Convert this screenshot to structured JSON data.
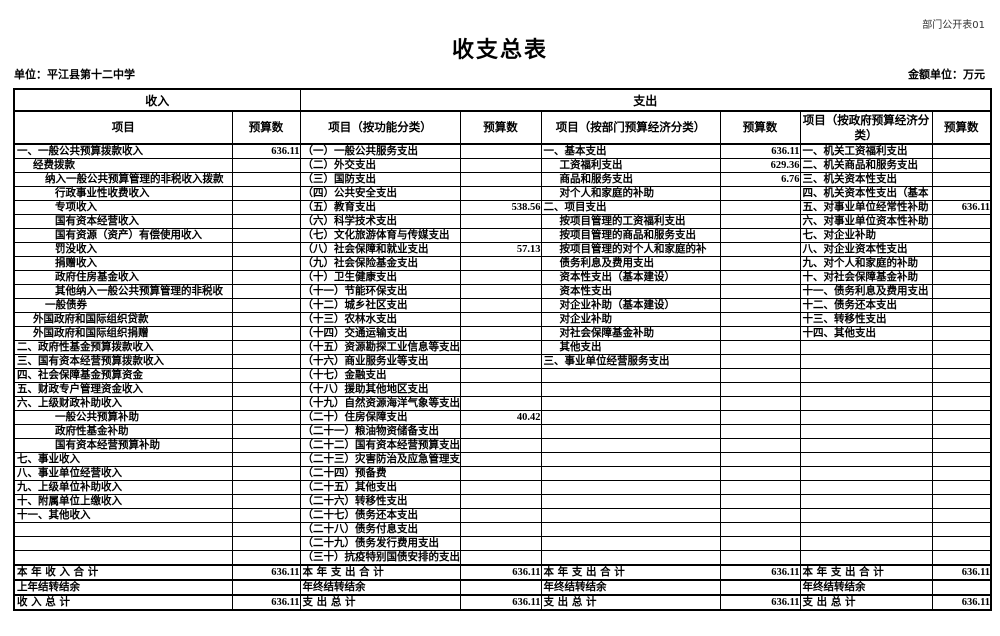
{
  "page": {
    "doc_label": "部门公开表01",
    "title": "收支总表",
    "org_label": "单位：平江县第十二中学",
    "amount_unit": "金额单位：万元"
  },
  "table": {
    "group_headers": [
      {
        "label": "收入",
        "span": 2
      },
      {
        "label": "支出",
        "span": 6
      }
    ],
    "column_headers": [
      "项目",
      "预算数",
      "项目（按功能分类）",
      "预算数",
      "项目（按部门预算经济分类）",
      "预算数",
      "项目（按政府预算经济分类）",
      "预算数"
    ],
    "rows": [
      {
        "cells": [
          [
            "一、一般公共预算拨款收入",
            0
          ],
          "636.11",
          [
            "（一）一般公共服务支出",
            0
          ],
          "",
          [
            "一、基本支出",
            0
          ],
          "636.11",
          [
            "一、机关工资福利支出",
            0
          ],
          ""
        ]
      },
      {
        "cells": [
          [
            "经费拨款",
            1
          ],
          "",
          [
            "（二）外交支出",
            0
          ],
          "",
          [
            "工资福利支出",
            1
          ],
          "629.36",
          [
            "二、机关商品和服务支出",
            0
          ],
          ""
        ]
      },
      {
        "cells": [
          [
            "纳入一般公共预算管理的非税收入拨款",
            2
          ],
          "",
          [
            "（三）国防支出",
            0
          ],
          "",
          [
            "商品和服务支出",
            1
          ],
          "6.76",
          [
            "三、机关资本性支出",
            0
          ],
          ""
        ]
      },
      {
        "cells": [
          [
            "行政事业性收费收入",
            3
          ],
          "",
          [
            "（四）公共安全支出",
            0
          ],
          "",
          [
            "对个人和家庭的补助",
            1
          ],
          "",
          [
            "四、机关资本性支出（基本",
            0
          ],
          ""
        ]
      },
      {
        "cells": [
          [
            "专项收入",
            3
          ],
          "",
          [
            "（五）教育支出",
            0
          ],
          "538.56",
          [
            "二、项目支出",
            0
          ],
          "",
          [
            "五、对事业单位经常性补助",
            0
          ],
          "636.11"
        ]
      },
      {
        "cells": [
          [
            "国有资本经营收入",
            3
          ],
          "",
          [
            "（六）科学技术支出",
            0
          ],
          "",
          [
            "按项目管理的工资福利支出",
            1
          ],
          "",
          [
            "六、对事业单位资本性补助",
            0
          ],
          ""
        ]
      },
      {
        "cells": [
          [
            "国有资源（资产）有偿使用收入",
            3
          ],
          "",
          [
            "（七）文化旅游体育与传媒支出",
            0
          ],
          "",
          [
            "按项目管理的商品和服务支出",
            1
          ],
          "",
          [
            "七、对企业补助",
            0
          ],
          ""
        ]
      },
      {
        "cells": [
          [
            "罚没收入",
            3
          ],
          "",
          [
            "（八）社会保障和就业支出",
            0
          ],
          "57.13",
          [
            "按项目管理的对个人和家庭的补",
            1
          ],
          "",
          [
            "八、对企业资本性支出",
            0
          ],
          ""
        ]
      },
      {
        "cells": [
          [
            "捐赠收入",
            3
          ],
          "",
          [
            "（九）社会保险基金支出",
            0
          ],
          "",
          [
            "债务利息及费用支出",
            1
          ],
          "",
          [
            "九、对个人和家庭的补助",
            0
          ],
          ""
        ]
      },
      {
        "cells": [
          [
            "政府住房基金收入",
            3
          ],
          "",
          [
            "（十）卫生健康支出",
            0
          ],
          "",
          [
            "资本性支出（基本建设）",
            1
          ],
          "",
          [
            "十、对社会保障基金补助",
            0
          ],
          ""
        ]
      },
      {
        "cells": [
          [
            "其他纳入一般公共预算管理的非税收",
            3
          ],
          "",
          [
            "（十一）节能环保支出",
            0
          ],
          "",
          [
            "资本性支出",
            1
          ],
          "",
          [
            "十一、债务利息及费用支出",
            0
          ],
          ""
        ]
      },
      {
        "cells": [
          [
            "一般债券",
            2
          ],
          "",
          [
            "（十二）城乡社区支出",
            0
          ],
          "",
          [
            "对企业补助（基本建设）",
            1
          ],
          "",
          [
            "十二、债务还本支出",
            0
          ],
          ""
        ]
      },
      {
        "cells": [
          [
            "外国政府和国际组织贷款",
            1
          ],
          "",
          [
            "（十三）农林水支出",
            0
          ],
          "",
          [
            "对企业补助",
            1
          ],
          "",
          [
            "十三、转移性支出",
            0
          ],
          ""
        ]
      },
      {
        "cells": [
          [
            "外国政府和国际组织捐赠",
            1
          ],
          "",
          [
            "（十四）交通运输支出",
            0
          ],
          "",
          [
            "对社会保障基金补助",
            1
          ],
          "",
          [
            "十四、其他支出",
            0
          ],
          ""
        ]
      },
      {
        "cells": [
          [
            "二、政府性基金预算拨款收入",
            0
          ],
          "",
          [
            "（十五）资源勘探工业信息等支出",
            0
          ],
          "",
          [
            "其他支出",
            1
          ],
          "",
          [
            "",
            0
          ],
          ""
        ]
      },
      {
        "cells": [
          [
            "三、国有资本经营预算拨款收入",
            0
          ],
          "",
          [
            "（十六）商业服务业等支出",
            0
          ],
          "",
          [
            "三、事业单位经营服务支出",
            0
          ],
          "",
          [
            "",
            0
          ],
          ""
        ]
      },
      {
        "cells": [
          [
            "四、社会保障基金预算资金",
            0
          ],
          "",
          [
            "（十七）金融支出",
            0
          ],
          "",
          [
            "",
            0
          ],
          "",
          [
            "",
            0
          ],
          ""
        ]
      },
      {
        "cells": [
          [
            "五、财政专户管理资金收入",
            0
          ],
          "",
          [
            "（十八）援助其他地区支出",
            0
          ],
          "",
          [
            "",
            0
          ],
          "",
          [
            "",
            0
          ],
          ""
        ]
      },
      {
        "cells": [
          [
            "六、上级财政补助收入",
            0
          ],
          "",
          [
            "（十九）自然资源海洋气象等支出",
            0
          ],
          "",
          [
            "",
            0
          ],
          "",
          [
            "",
            0
          ],
          ""
        ]
      },
      {
        "cells": [
          [
            "一般公共预算补助",
            3
          ],
          "",
          [
            "（二十）住房保障支出",
            0
          ],
          "40.42",
          [
            "",
            0
          ],
          "",
          [
            "",
            0
          ],
          ""
        ]
      },
      {
        "cells": [
          [
            "政府性基金补助",
            3
          ],
          "",
          [
            "（二十一）粮油物资储备支出",
            0
          ],
          "",
          [
            "",
            0
          ],
          "",
          [
            "",
            0
          ],
          ""
        ]
      },
      {
        "cells": [
          [
            "国有资本经营预算补助",
            3
          ],
          "",
          [
            "（二十二）国有资本经营预算支出",
            0
          ],
          "",
          [
            "",
            0
          ],
          "",
          [
            "",
            0
          ],
          ""
        ]
      },
      {
        "cells": [
          [
            "七、事业收入",
            0
          ],
          "",
          [
            "（二十三）灾害防治及应急管理支",
            0
          ],
          "",
          [
            "",
            0
          ],
          "",
          [
            "",
            0
          ],
          ""
        ]
      },
      {
        "cells": [
          [
            "八、事业单位经营收入",
            0
          ],
          "",
          [
            "（二十四）预备费",
            0
          ],
          "",
          [
            "",
            0
          ],
          "",
          [
            "",
            0
          ],
          ""
        ]
      },
      {
        "cells": [
          [
            "九、上级单位补助收入",
            0
          ],
          "",
          [
            "（二十五）其他支出",
            0
          ],
          "",
          [
            "",
            0
          ],
          "",
          [
            "",
            0
          ],
          ""
        ]
      },
      {
        "cells": [
          [
            "十、附属单位上缴收入",
            0
          ],
          "",
          [
            "（二十六）转移性支出",
            0
          ],
          "",
          [
            "",
            0
          ],
          "",
          [
            "",
            0
          ],
          ""
        ]
      },
      {
        "cells": [
          [
            "十一、其他收入",
            0
          ],
          "",
          [
            "（二十七）债务还本支出",
            0
          ],
          "",
          [
            "",
            0
          ],
          "",
          [
            "",
            0
          ],
          ""
        ]
      },
      {
        "cells": [
          [
            "",
            0
          ],
          "",
          [
            "（二十八）债务付息支出",
            0
          ],
          "",
          [
            "",
            0
          ],
          "",
          [
            "",
            0
          ],
          ""
        ]
      },
      {
        "cells": [
          [
            "",
            0
          ],
          "",
          [
            "（二十九）债务发行费用支出",
            0
          ],
          "",
          [
            "",
            0
          ],
          "",
          [
            "",
            0
          ],
          ""
        ]
      },
      {
        "cells": [
          [
            "",
            0
          ],
          "",
          [
            "（三十）抗疫特别国债安排的支出",
            0
          ],
          "",
          [
            "",
            0
          ],
          "",
          [
            "",
            0
          ],
          ""
        ]
      }
    ],
    "total_rows": [
      {
        "cells": [
          [
            "本 年 收 入 合 计",
            0
          ],
          "636.11",
          [
            "本 年 支 出 合 计",
            0
          ],
          "636.11",
          [
            "本 年 支 出 合 计",
            0
          ],
          "636.11",
          [
            "本 年 支 出 合 计",
            0
          ],
          "636.11"
        ]
      },
      {
        "cells": [
          [
            "上年结转结余",
            0
          ],
          "",
          [
            "年终结转结余",
            0
          ],
          "",
          [
            "年终结转结余",
            0
          ],
          "",
          [
            "年终结转结余",
            0
          ],
          ""
        ]
      },
      {
        "cells": [
          [
            "收 入 总 计",
            0
          ],
          "636.11",
          [
            "支 出 总 计",
            0
          ],
          "636.11",
          [
            "支 出 总 计",
            0
          ],
          "636.11",
          [
            "支 出 总 计",
            0
          ],
          "636.11"
        ]
      }
    ]
  }
}
